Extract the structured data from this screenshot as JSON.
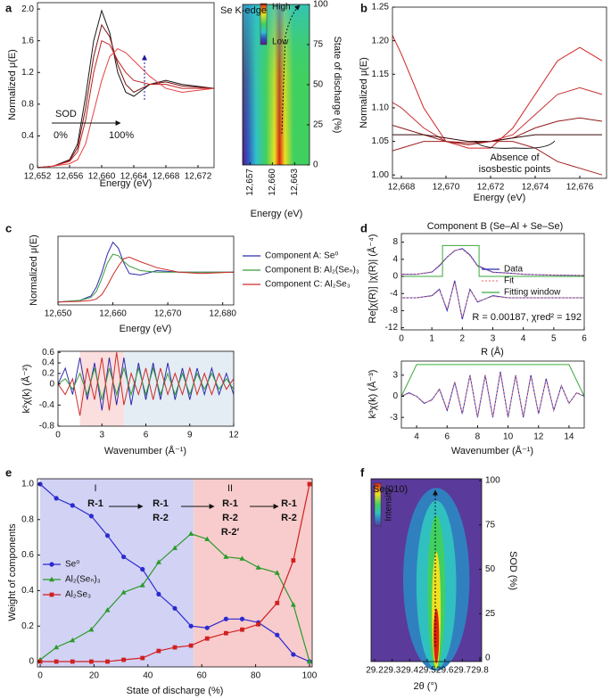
{
  "chart_data": [
    {
      "type": "line",
      "label": "a",
      "xlabel": "Energy (eV)",
      "ylabel": "Normalized μ(E)",
      "xlim": [
        12652,
        12674
      ],
      "ylim": [
        0,
        2.08
      ],
      "xticks": [
        {
          "value": 12652,
          "label": "12,652"
        },
        {
          "value": 12656,
          "label": "12,656"
        },
        {
          "value": 12660,
          "label": "12,660"
        },
        {
          "value": 12664,
          "label": "12,664"
        },
        {
          "value": 12668,
          "label": "12,668"
        },
        {
          "value": 12672,
          "label": "12,672"
        }
      ],
      "yticks": [
        0,
        0.4,
        0.8,
        1.2,
        1.6,
        {
          "value": 2,
          "label": "2.0"
        }
      ],
      "annotations": [
        "SOD",
        "0%",
        "100%"
      ],
      "x": [
        12652,
        12654,
        12656,
        12657,
        12658,
        12659,
        12660,
        12661,
        12662,
        12663,
        12664,
        12666,
        12668,
        12670,
        12674
      ],
      "series": [
        {
          "color": "#1a1a1a",
          "values": [
            0,
            0.02,
            0.1,
            0.3,
            0.9,
            1.6,
            1.98,
            1.7,
            1.2,
            0.95,
            0.9,
            1.05,
            1.1,
            1.05,
            1.0
          ]
        },
        {
          "color": "#7a1010",
          "values": [
            0,
            0.02,
            0.09,
            0.25,
            0.75,
            1.4,
            1.8,
            1.65,
            1.3,
            1.05,
            0.95,
            1.05,
            1.08,
            1.03,
            1.0
          ]
        },
        {
          "color": "#c02020",
          "values": [
            0,
            0.02,
            0.08,
            0.2,
            0.6,
            1.2,
            1.6,
            1.55,
            1.35,
            1.2,
            1.1,
            1.05,
            1.05,
            1.0,
            1.0
          ]
        },
        {
          "color": "#e84040",
          "values": [
            0,
            0.02,
            0.05,
            0.1,
            0.3,
            0.7,
            1.1,
            1.4,
            1.5,
            1.45,
            1.35,
            1.15,
            1.0,
            0.95,
            1.0
          ]
        }
      ]
    },
    {
      "type": "heatmap",
      "title": "Se K-edge",
      "xlabel": "Energy (eV)",
      "ylabel": "State of discharge (%)",
      "xlim": [
        12656,
        12665
      ],
      "ylim": [
        0,
        100
      ],
      "xticks": [
        {
          "value": 12657,
          "label": "12,657"
        },
        {
          "value": 12660,
          "label": "12,660"
        },
        {
          "value": 12663,
          "label": "12,663"
        }
      ],
      "yticks": [
        0,
        25,
        50,
        75,
        100
      ],
      "colorbar": [
        "High",
        "Low"
      ],
      "colormap": [
        "#5a1a8c",
        "#3050c0",
        "#30c0d0",
        "#40d060",
        "#f0e020",
        "#e02010"
      ]
    },
    {
      "type": "line",
      "label": "b",
      "xlabel": "Energy (eV)",
      "ylabel": "Normalized μ(E)",
      "xlim": [
        12667.6,
        12677.2
      ],
      "ylim": [
        0.995,
        1.25
      ],
      "xticks": [
        {
          "value": 12668,
          "label": "12,668"
        },
        {
          "value": 12670,
          "label": "12,670"
        },
        {
          "value": 12672,
          "label": "12,672"
        },
        {
          "value": 12674,
          "label": "12,674"
        },
        {
          "value": 12676,
          "label": "12,676"
        }
      ],
      "yticks": [
        {
          "value": 1,
          "label": "1.00"
        },
        1.05,
        {
          "value": 1.1,
          "label": "1.10"
        },
        1.15,
        {
          "value": 1.2,
          "label": "1.20"
        },
        1.25
      ],
      "annotations": [
        "Absence of",
        "isosbestic points"
      ],
      "x": [
        12667,
        12668,
        12669,
        12670,
        12671,
        12672,
        12673,
        12674,
        12675,
        12676,
        12677
      ],
      "series": [
        {
          "color": "#d02020",
          "values": [
            1.25,
            1.18,
            1.1,
            1.05,
            1.04,
            1.04,
            1.07,
            1.12,
            1.17,
            1.19,
            1.17
          ]
        },
        {
          "color": "#c83030",
          "values": [
            1.12,
            1.1,
            1.07,
            1.05,
            1.045,
            1.05,
            1.06,
            1.09,
            1.12,
            1.13,
            1.12
          ]
        },
        {
          "color": "#901818",
          "values": [
            1.08,
            1.07,
            1.06,
            1.05,
            1.048,
            1.05,
            1.055,
            1.07,
            1.08,
            1.085,
            1.08
          ]
        },
        {
          "color": "#3a0a0a",
          "values": [
            1.06,
            1.06,
            1.06,
            1.055,
            1.05,
            1.05,
            1.055,
            1.06,
            1.06,
            1.06,
            1.06
          ]
        },
        {
          "color": "#a02020",
          "values": [
            1.03,
            1.04,
            1.05,
            1.05,
            1.045,
            1.05,
            1.05,
            1.04,
            1.02,
            1.01,
            1.0
          ]
        }
      ]
    },
    {
      "type": "line",
      "label": "c",
      "xlabel": "Energy (eV)",
      "ylabel": "Normalized μ(E)",
      "xlim": [
        12650,
        12682
      ],
      "ylim": [
        -0.1,
        2.2
      ],
      "xticks": [
        {
          "value": 12650,
          "label": "12,650"
        },
        {
          "value": 12660,
          "label": "12,660"
        },
        {
          "value": 12670,
          "label": "12,670"
        },
        {
          "value": 12680,
          "label": "12,680"
        }
      ],
      "x": [
        12650,
        12654,
        12656,
        12657,
        12658,
        12659,
        12660,
        12661,
        12662,
        12663,
        12665,
        12668,
        12672,
        12676,
        12682
      ],
      "series": [
        {
          "name": "Component A: Se⁰",
          "color": "#2b2bb0",
          "values": [
            0,
            0.05,
            0.2,
            0.5,
            1.0,
            1.6,
            2.0,
            1.8,
            1.3,
            0.95,
            0.9,
            1.05,
            1.0,
            1.0,
            1.0
          ]
        },
        {
          "name": "Component B: Al₂(Seₙ)₃",
          "color": "#3a9a3a",
          "values": [
            0,
            0.05,
            0.15,
            0.35,
            0.8,
            1.3,
            1.6,
            1.55,
            1.35,
            1.2,
            1.05,
            1.0,
            1.0,
            1.0,
            1.0
          ]
        },
        {
          "name": "Component C: Al₂Se₃",
          "color": "#d02a2a",
          "values": [
            0,
            0.02,
            0.05,
            0.1,
            0.25,
            0.55,
            0.9,
            1.2,
            1.45,
            1.5,
            1.35,
            1.15,
            1.0,
            0.95,
            1.0
          ]
        }
      ]
    },
    {
      "type": "line",
      "xlabel": "Wavenumber (Å⁻¹)",
      "ylabel": "k²χ(k) (Å⁻²)",
      "xlim": [
        0,
        12
      ],
      "ylim": [
        -0.8,
        0.62
      ],
      "xticks": [
        0,
        3,
        6,
        9,
        12
      ],
      "yticks": [
        -0.8,
        -0.4,
        0,
        0.2,
        0.4,
        0.6
      ],
      "bands": [
        {
          "from": 1.5,
          "to": 4.5,
          "color": "#fbdede"
        },
        {
          "from": 4.5,
          "to": 12,
          "color": "#e4edf3"
        }
      ],
      "x": [
        0,
        0.5,
        1,
        1.5,
        2,
        2.5,
        3,
        3.5,
        4,
        4.5,
        5,
        5.5,
        6,
        6.5,
        7,
        7.5,
        8,
        8.5,
        9,
        9.5,
        10,
        10.5,
        11,
        11.5,
        12
      ],
      "series": [
        {
          "color": "#2b2bb0",
          "values": [
            0,
            0.3,
            -0.2,
            0.5,
            -0.3,
            0.4,
            -0.5,
            0.5,
            -0.4,
            0.5,
            -0.4,
            0.4,
            -0.3,
            0.4,
            -0.3,
            0.4,
            -0.3,
            0.3,
            -0.3,
            0.3,
            -0.2,
            0.3,
            -0.2,
            0.2,
            -0.2
          ]
        },
        {
          "color": "#3a9a3a",
          "values": [
            0,
            0.1,
            -0.1,
            0.2,
            -0.2,
            0.3,
            -0.3,
            0.3,
            -0.2,
            0.3,
            -0.2,
            0.3,
            -0.2,
            0.3,
            -0.2,
            0.2,
            -0.2,
            0.2,
            -0.2,
            0.2,
            -0.1,
            0.2,
            -0.1,
            0.1,
            -0.1
          ]
        },
        {
          "color": "#d02a2a",
          "values": [
            0,
            -0.2,
            0.1,
            -0.6,
            0.3,
            -0.3,
            0.5,
            -0.5,
            0.6,
            -0.4,
            0.2,
            -0.2,
            0.3,
            -0.3,
            0.3,
            -0.2,
            0.2,
            -0.2,
            0.3,
            -0.2,
            0.2,
            -0.2,
            0.2,
            -0.1,
            0.1
          ]
        }
      ]
    },
    {
      "type": "line",
      "label": "d",
      "title": "Component B (Se–Al + Se–Se)",
      "xlabel": "R (Å)",
      "ylabel": "|χ(R)| (Å⁻⁴)",
      "ylabel2": "Re[χ(R)]",
      "xlim": [
        0,
        6
      ],
      "ylim": [
        -12.5,
        10
      ],
      "xticks": [
        0,
        1,
        2,
        3,
        4,
        5,
        6
      ],
      "yticks": [
        -12,
        -8,
        -4,
        0,
        4,
        8
      ],
      "annotations": [
        "R = 0.00187, χred² = 192"
      ],
      "x": [
        0,
        0.5,
        1,
        1.25,
        1.5,
        1.75,
        2,
        2.25,
        2.5,
        3,
        3.5,
        4,
        5,
        6
      ],
      "series": [
        {
          "name": "Data",
          "color": "#2b2bb0",
          "values": [
            0.5,
            0.5,
            1,
            2.5,
            4.5,
            6,
            6.5,
            5,
            2.5,
            1,
            0.8,
            0.5,
            0.3,
            0.2
          ]
        },
        {
          "name": "Fit",
          "color": "#f08080",
          "dash": true,
          "values": [
            0.4,
            0.5,
            1.1,
            2.7,
            4.6,
            6.1,
            6.3,
            4.8,
            2.3,
            0.9,
            0.7,
            0.5,
            0.3,
            0.2
          ]
        },
        {
          "name": "Fitting window",
          "color": "#3aaa3a",
          "x": [
            0,
            1.35,
            1.35,
            2.55,
            2.55,
            6
          ],
          "values": [
            0,
            0,
            7.2,
            7.2,
            0,
            0
          ]
        },
        {
          "color": "#2b2bb0",
          "values": [
            -5,
            -5,
            -4.5,
            -3,
            -8,
            -1,
            -10,
            -3,
            -6,
            -4.5,
            -5,
            -5,
            -5,
            -5
          ]
        },
        {
          "color": "#f08080",
          "dash": true,
          "values": [
            -5,
            -5,
            -4.6,
            -3.2,
            -7.6,
            -1.4,
            -9.6,
            -3.2,
            -5.8,
            -4.7,
            -5,
            -5,
            -5,
            -5
          ]
        }
      ]
    },
    {
      "type": "line",
      "xlabel": "Wavenumber (Å⁻¹)",
      "ylabel": "k³χ(k) (Å⁻³)",
      "xlim": [
        3,
        15
      ],
      "ylim": [
        -4.5,
        5
      ],
      "xticks": [
        4,
        6,
        8,
        10,
        12,
        14
      ],
      "yticks": [
        -3,
        0,
        3
      ],
      "x": [
        3,
        3.5,
        4,
        4.5,
        5,
        5.5,
        6,
        6.5,
        7,
        7.5,
        8,
        8.5,
        9,
        9.5,
        10,
        10.5,
        11,
        11.5,
        12,
        12.5,
        13,
        13.5,
        14,
        14.5,
        15
      ],
      "series": [
        {
          "color": "#2b2bb0",
          "values": [
            0,
            0.5,
            0,
            -1,
            -0.5,
            1,
            -2,
            2,
            -2.5,
            3,
            -3,
            3,
            -3,
            3.5,
            -3,
            3,
            -3,
            3,
            -2.5,
            2.5,
            -2,
            1.5,
            -1,
            0.5,
            0
          ]
        },
        {
          "color": "#f08080",
          "dash": true,
          "values": [
            0,
            0.4,
            0,
            -0.9,
            -0.6,
            1.1,
            -1.9,
            2.1,
            -2.4,
            2.9,
            -2.9,
            3.1,
            -2.9,
            3.3,
            -2.9,
            2.9,
            -2.8,
            2.8,
            -2.4,
            2.3,
            -1.9,
            1.4,
            -1,
            0.5,
            0
          ]
        },
        {
          "color": "#3aaa3a",
          "x": [
            3,
            4,
            14,
            15
          ],
          "values": [
            0,
            4.5,
            4.5,
            0
          ]
        }
      ]
    },
    {
      "type": "line",
      "label": "e",
      "xlabel": "State of discharge (%)",
      "ylabel": "Weight of components",
      "xlim": [
        -1,
        101
      ],
      "ylim": [
        -0.03,
        1.03
      ],
      "xticks": [
        0,
        20,
        40,
        60,
        80,
        100
      ],
      "yticks": [
        0,
        0.2,
        0.4,
        0.6,
        0.8,
        {
          "value": 1,
          "label": "1.0"
        }
      ],
      "bands": [
        {
          "from": 0,
          "to": 57,
          "color": "#d2d2f5"
        },
        {
          "from": 57,
          "to": 101,
          "color": "#f8cccc"
        }
      ],
      "annotations": [
        "I",
        "R-1",
        "R-1",
        "R-2",
        "II",
        "R-1",
        "R-2",
        "R-2′",
        "R-1",
        "R-2"
      ],
      "x": [
        0,
        6,
        12,
        19,
        25,
        31,
        38,
        44,
        50,
        56,
        62,
        69,
        75,
        81,
        88,
        94,
        100
      ],
      "series": [
        {
          "name": "Se⁰",
          "color": "#2b2bd0",
          "marker": "circle",
          "values": [
            1.0,
            0.92,
            0.88,
            0.82,
            0.71,
            0.59,
            0.52,
            0.38,
            0.3,
            0.2,
            0.19,
            0.24,
            0.24,
            0.22,
            0.15,
            0.04,
            0
          ]
        },
        {
          "name": "Al₂(Seₙ)₃",
          "color": "#2a9a2a",
          "marker": "triangle",
          "values": [
            0.01,
            0.08,
            0.12,
            0.18,
            0.29,
            0.39,
            0.43,
            0.56,
            0.64,
            0.72,
            0.69,
            0.59,
            0.58,
            0.53,
            0.5,
            0.32,
            0
          ]
        },
        {
          "name": "Al₂Se₃",
          "color": "#d02020",
          "marker": "square",
          "values": [
            0,
            0,
            0,
            0,
            0,
            0.01,
            0.02,
            0.06,
            0.08,
            0.09,
            0.13,
            0.16,
            0.18,
            0.21,
            0.33,
            0.57,
            1.0
          ]
        }
      ]
    },
    {
      "type": "heatmap",
      "label": "f",
      "title": "Se(010)",
      "xlabel": "2θ (°)",
      "ylabel": "SOD (%)",
      "xlim": [
        29.18,
        29.81
      ],
      "ylim": [
        -2,
        101
      ],
      "xticks": [
        29.2,
        29.3,
        29.4,
        29.5,
        29.6,
        29.7,
        29.8
      ],
      "yticks": [
        0,
        25,
        50,
        75,
        100
      ],
      "colorbar": [
        "Intensity"
      ],
      "colormap": [
        "#5a3a9a",
        "#3080c0",
        "#30c0c0",
        "#40d060",
        "#f0e020",
        "#e02010"
      ]
    }
  ]
}
